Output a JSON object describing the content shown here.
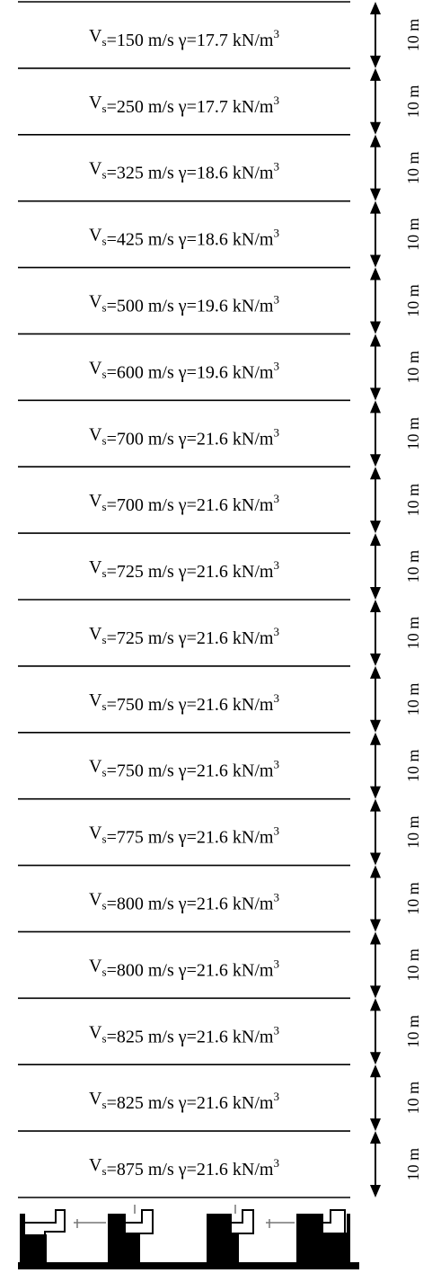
{
  "title": "",
  "layers": [
    {
      "vs": "150",
      "gamma": "17.7",
      "thickness": "10 m"
    },
    {
      "vs": "250",
      "gamma": "17.7",
      "thickness": "10 m"
    },
    {
      "vs": "325",
      "gamma": "18.6",
      "thickness": "10 m"
    },
    {
      "vs": "425",
      "gamma": "18.6",
      "thickness": "10 m"
    },
    {
      "vs": "500",
      "gamma": "19.6",
      "thickness": "10 m"
    },
    {
      "vs": "600",
      "gamma": "19.6",
      "thickness": "10 m"
    },
    {
      "vs": "700",
      "gamma": "21.6",
      "thickness": "10 m"
    },
    {
      "vs": "700",
      "gamma": "21.6",
      "thickness": "10 m"
    },
    {
      "vs": "725",
      "gamma": "21.6",
      "thickness": "10 m"
    },
    {
      "vs": "725",
      "gamma": "21.6",
      "thickness": "10 m"
    },
    {
      "vs": "750",
      "gamma": "21.6",
      "thickness": "10 m"
    },
    {
      "vs": "750",
      "gamma": "21.6",
      "thickness": "10 m"
    },
    {
      "vs": "775",
      "gamma": "21.6",
      "thickness": "10 m"
    },
    {
      "vs": "800",
      "gamma": "21.6",
      "thickness": "10 m"
    },
    {
      "vs": "800",
      "gamma": "21.6",
      "thickness": "10 m"
    },
    {
      "vs": "825",
      "gamma": "21.6",
      "thickness": "10 m"
    },
    {
      "vs": "825",
      "gamma": "21.6",
      "thickness": "10 m"
    },
    {
      "vs": "875",
      "gamma": "21.6",
      "thickness": "10 m"
    }
  ],
  "symbols": {
    "velocity": "V",
    "velocity_subscript": "s",
    "velocity_unit": "m/s",
    "unit_weight": "γ",
    "unit_weight_unit": "kN/m",
    "unit_weight_exponent": "3"
  },
  "colors": {
    "line": "#000000",
    "background": "#ffffff"
  },
  "icons": {
    "base": "bedrock-hatch-icon"
  }
}
